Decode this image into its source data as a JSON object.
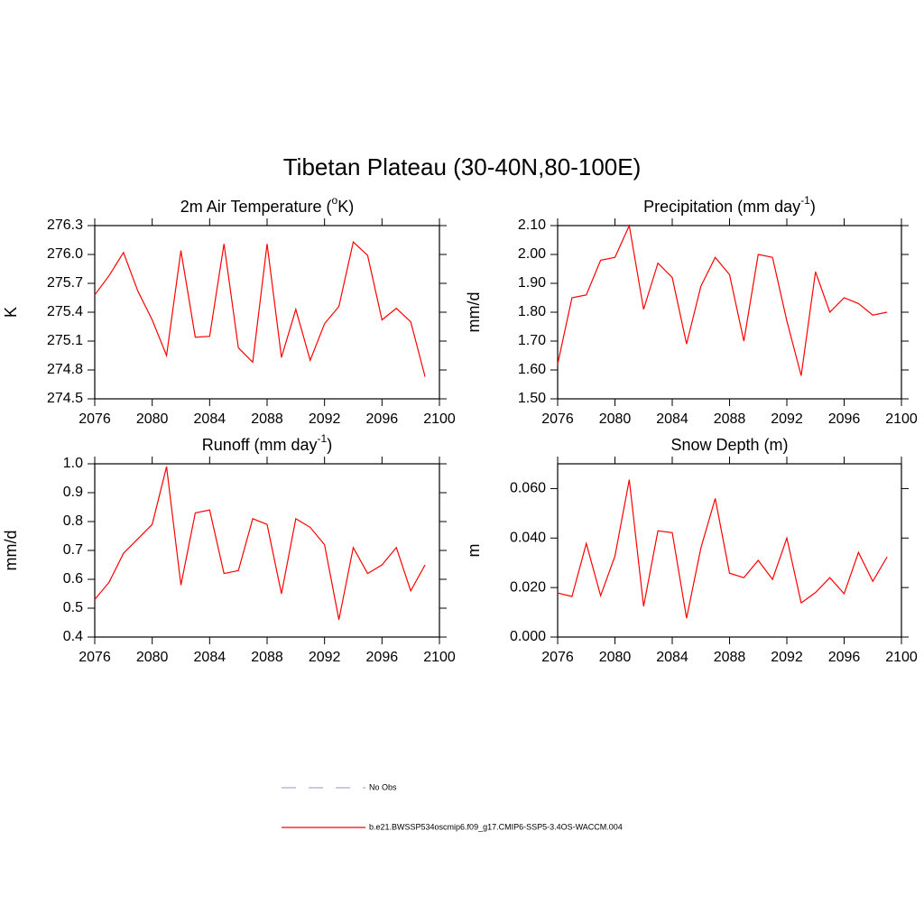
{
  "title": "Tibetan Plateau (30-40N,80-100E)",
  "chart_data": [
    {
      "type": "line",
      "title_parts": [
        "2m Air Temperature (",
        "o",
        "K)"
      ],
      "ylabel": "K",
      "x": [
        2076,
        2077,
        2078,
        2079,
        2080,
        2081,
        2082,
        2083,
        2084,
        2085,
        2086,
        2087,
        2088,
        2089,
        2090,
        2091,
        2092,
        2093,
        2094,
        2095,
        2096,
        2097,
        2098,
        2099
      ],
      "xlim": [
        2076,
        2100
      ],
      "xticks": [
        2076,
        2080,
        2084,
        2088,
        2092,
        2096,
        2100
      ],
      "ylim": [
        274.5,
        276.3
      ],
      "yticks": [
        274.5,
        274.8,
        275.1,
        275.4,
        275.7,
        {
          "value": 276,
          "label": "276.0"
        },
        276.3
      ],
      "color": "#ff0000",
      "values": [
        275.58,
        275.78,
        276.02,
        275.62,
        275.32,
        274.95,
        276.04,
        275.14,
        275.15,
        276.11,
        275.03,
        274.88,
        276.11,
        274.93,
        275.43,
        274.9,
        275.28,
        275.46,
        276.13,
        275.99,
        275.32,
        275.44,
        275.3,
        274.73
      ]
    },
    {
      "type": "line",
      "title_parts": [
        "Precipitation (mm day",
        "-1",
        ")"
      ],
      "ylabel": "mm/d",
      "x": [
        2076,
        2077,
        2078,
        2079,
        2080,
        2081,
        2082,
        2083,
        2084,
        2085,
        2086,
        2087,
        2088,
        2089,
        2090,
        2091,
        2092,
        2093,
        2094,
        2095,
        2096,
        2097,
        2098,
        2099
      ],
      "xlim": [
        2076,
        2100
      ],
      "xticks": [
        2076,
        2080,
        2084,
        2088,
        2092,
        2096,
        2100
      ],
      "ylim": [
        1.5,
        2.1
      ],
      "yticks": [
        {
          "value": 1.5,
          "label": "1.50"
        },
        {
          "value": 1.6,
          "label": "1.60"
        },
        {
          "value": 1.7,
          "label": "1.70"
        },
        {
          "value": 1.8,
          "label": "1.80"
        },
        {
          "value": 1.9,
          "label": "1.90"
        },
        {
          "value": 2,
          "label": "2.00"
        },
        {
          "value": 2.1,
          "label": "2.10"
        }
      ],
      "color": "#ff0000",
      "values": [
        1.62,
        1.85,
        1.86,
        1.98,
        1.99,
        2.1,
        1.81,
        1.97,
        1.92,
        1.69,
        1.89,
        1.99,
        1.93,
        1.7,
        2.0,
        1.99,
        1.77,
        1.58,
        1.94,
        1.8,
        1.85,
        1.83,
        1.79,
        1.8
      ]
    },
    {
      "type": "line",
      "title_parts": [
        "Runoff (mm day",
        "-1",
        ")"
      ],
      "ylabel": "mm/d",
      "x": [
        2076,
        2077,
        2078,
        2079,
        2080,
        2081,
        2082,
        2083,
        2084,
        2085,
        2086,
        2087,
        2088,
        2089,
        2090,
        2091,
        2092,
        2093,
        2094,
        2095,
        2096,
        2097,
        2098,
        2099
      ],
      "xlim": [
        2076,
        2100
      ],
      "xticks": [
        2076,
        2080,
        2084,
        2088,
        2092,
        2096,
        2100
      ],
      "ylim": [
        0.4,
        1.0
      ],
      "yticks": [
        0.4,
        0.5,
        0.6,
        0.7,
        0.8,
        0.9,
        {
          "value": 1,
          "label": "1.0"
        }
      ],
      "color": "#ff0000",
      "values": [
        0.53,
        0.59,
        0.69,
        0.74,
        0.79,
        0.99,
        0.58,
        0.83,
        0.84,
        0.62,
        0.63,
        0.81,
        0.79,
        0.55,
        0.81,
        0.78,
        0.72,
        0.46,
        0.71,
        0.62,
        0.65,
        0.71,
        0.56,
        0.65
      ]
    },
    {
      "type": "line",
      "title_parts": [
        "Snow Depth (m)"
      ],
      "ylabel": "m",
      "x": [
        2076,
        2077,
        2078,
        2079,
        2080,
        2081,
        2082,
        2083,
        2084,
        2085,
        2086,
        2087,
        2088,
        2089,
        2090,
        2091,
        2092,
        2093,
        2094,
        2095,
        2096,
        2097,
        2098,
        2099
      ],
      "xlim": [
        2076,
        2100
      ],
      "xticks": [
        2076,
        2080,
        2084,
        2088,
        2092,
        2096,
        2100
      ],
      "ylim": [
        0,
        0.07
      ],
      "yticks": [
        {
          "value": 0,
          "label": "0.000"
        },
        {
          "value": 0.02,
          "label": "0.020"
        },
        {
          "value": 0.04,
          "label": "0.040"
        },
        {
          "value": 0.06,
          "label": "0.060"
        }
      ],
      "color": "#ff0000",
      "values": [
        0.0178,
        0.0164,
        0.0378,
        0.0167,
        0.0327,
        0.0636,
        0.0124,
        0.0429,
        0.0422,
        0.0076,
        0.036,
        0.056,
        0.0258,
        0.024,
        0.031,
        0.0233,
        0.04,
        0.0138,
        0.018,
        0.024,
        0.0175,
        0.0342,
        0.0225,
        0.0324
      ]
    }
  ],
  "legend": [
    {
      "name": "No Obs",
      "color": "#a8acd8",
      "dashed": true
    },
    {
      "name": "b.e21.BWSSP534oscmip6.f09_g17.CMIP6-SSP5-3.4OS-WACCM.004",
      "color": "#ff0000",
      "dashed": false
    }
  ]
}
